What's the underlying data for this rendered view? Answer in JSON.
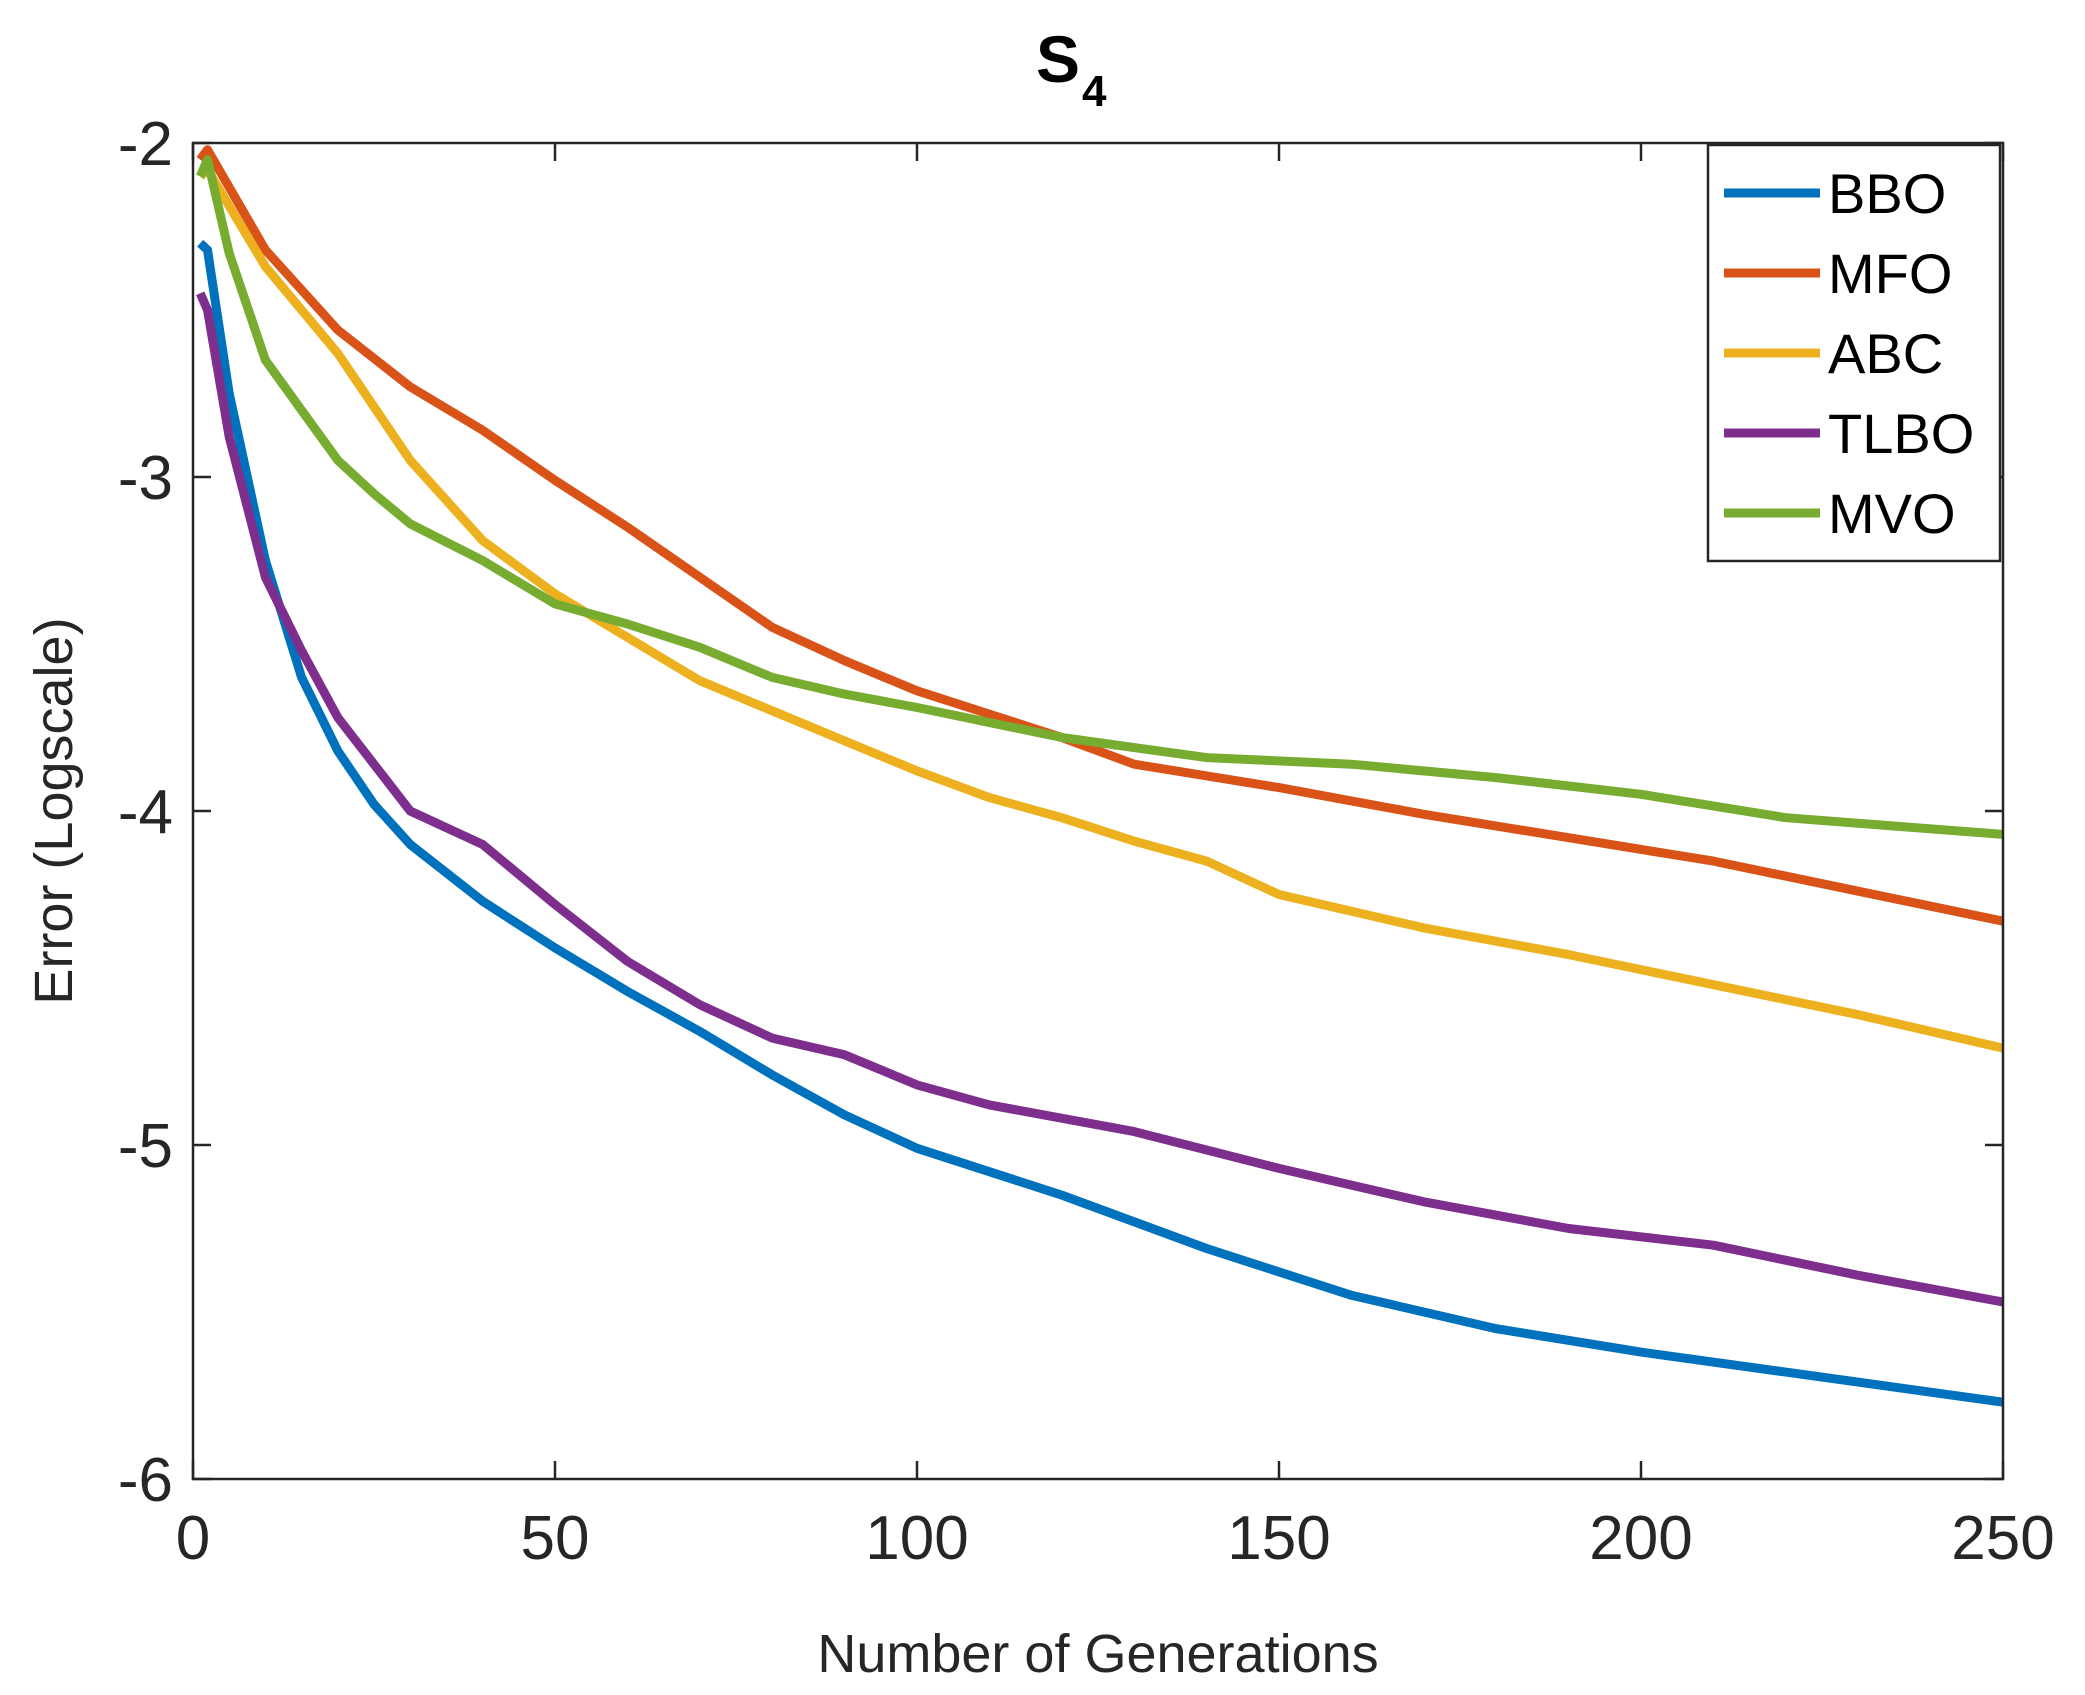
{
  "chart_data": {
    "type": "line",
    "title": "S",
    "title_subscript": "4",
    "xlabel": "Number of Generations",
    "ylabel": "Error (Logscale)",
    "xlim": [
      0,
      250
    ],
    "ylim": [
      -6,
      -2
    ],
    "xticks": [
      0,
      50,
      100,
      150,
      200,
      250
    ],
    "xtick_labels": [
      "0",
      "50",
      "100",
      "150",
      "200",
      "250"
    ],
    "yticks": [
      -2,
      -3,
      -4,
      -5,
      -6
    ],
    "ytick_labels": [
      "-2",
      "-3",
      "-4",
      "-5",
      "-6"
    ],
    "grid": false,
    "legend_position": "top-right",
    "series": [
      {
        "name": "BBO",
        "color": "#0072BD",
        "x": [
          1,
          2,
          5,
          10,
          15,
          20,
          25,
          30,
          40,
          50,
          60,
          70,
          80,
          90,
          100,
          120,
          140,
          160,
          180,
          200,
          220,
          250
        ],
        "y": [
          -2.3,
          -2.32,
          -2.75,
          -3.25,
          -3.6,
          -3.82,
          -3.98,
          -4.1,
          -4.27,
          -4.41,
          -4.54,
          -4.66,
          -4.79,
          -4.91,
          -5.01,
          -5.15,
          -5.31,
          -5.45,
          -5.55,
          -5.62,
          -5.68,
          -5.77
        ]
      },
      {
        "name": "MFO",
        "color": "#D95319",
        "x": [
          1,
          2,
          10,
          20,
          30,
          40,
          50,
          60,
          70,
          80,
          90,
          100,
          110,
          120,
          130,
          150,
          170,
          190,
          210,
          230,
          250
        ],
        "y": [
          -2.05,
          -2.02,
          -2.32,
          -2.56,
          -2.73,
          -2.86,
          -3.01,
          -3.15,
          -3.3,
          -3.45,
          -3.55,
          -3.64,
          -3.71,
          -3.78,
          -3.86,
          -3.93,
          -4.01,
          -4.08,
          -4.15,
          -4.24,
          -4.33
        ]
      },
      {
        "name": "ABC",
        "color": "#EDB120",
        "x": [
          1,
          2,
          10,
          20,
          30,
          40,
          50,
          60,
          70,
          80,
          90,
          100,
          110,
          120,
          130,
          140,
          150,
          170,
          190,
          210,
          230,
          250
        ],
        "y": [
          -2.1,
          -2.08,
          -2.37,
          -2.63,
          -2.95,
          -3.19,
          -3.35,
          -3.48,
          -3.61,
          -3.7,
          -3.79,
          -3.88,
          -3.96,
          -4.02,
          -4.09,
          -4.15,
          -4.25,
          -4.35,
          -4.43,
          -4.52,
          -4.61,
          -4.71
        ]
      },
      {
        "name": "TLBO",
        "color": "#7E2F8E",
        "x": [
          1,
          2,
          5,
          10,
          15,
          20,
          25,
          30,
          40,
          50,
          60,
          70,
          80,
          90,
          100,
          110,
          130,
          150,
          160,
          170,
          190,
          210,
          230,
          250
        ],
        "y": [
          -2.45,
          -2.5,
          -2.88,
          -3.3,
          -3.52,
          -3.72,
          -3.86,
          -4.0,
          -4.1,
          -4.28,
          -4.45,
          -4.58,
          -4.68,
          -4.73,
          -4.82,
          -4.88,
          -4.96,
          -5.07,
          -5.12,
          -5.17,
          -5.25,
          -5.3,
          -5.39,
          -5.47
        ]
      },
      {
        "name": "MVO",
        "color": "#77AC30",
        "x": [
          1,
          2,
          5,
          10,
          15,
          20,
          25,
          30,
          40,
          50,
          60,
          70,
          80,
          90,
          100,
          120,
          140,
          160,
          180,
          200,
          220,
          250
        ],
        "y": [
          -2.1,
          -2.05,
          -2.33,
          -2.65,
          -2.8,
          -2.95,
          -3.05,
          -3.14,
          -3.25,
          -3.38,
          -3.44,
          -3.51,
          -3.6,
          -3.65,
          -3.69,
          -3.78,
          -3.84,
          -3.86,
          -3.9,
          -3.95,
          -4.02,
          -4.07
        ]
      }
    ]
  }
}
